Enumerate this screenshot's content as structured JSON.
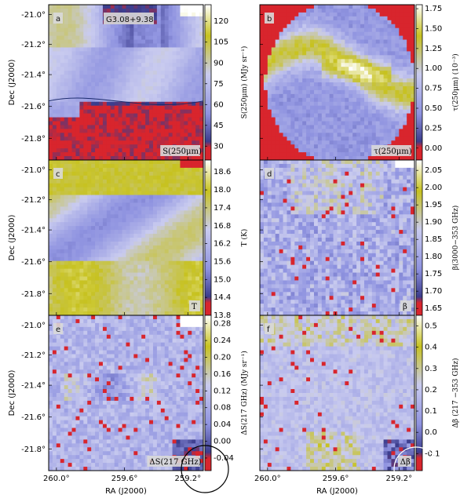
{
  "colors": {
    "low": "#d8252d",
    "mid_dark": "#3b3c8c",
    "mid": "#8f93e0",
    "light": "#c9cbef",
    "high": "#c7c21f",
    "top": "#ffffff"
  },
  "icons": [
    "colorbar",
    "heatmap-panel"
  ],
  "chart_data": [
    {
      "type": "heatmap",
      "panel": "a",
      "title": "G3.08+9.38",
      "corner_label": "S(250μm)",
      "colorbar_label": "S(250μm) (MJy sr⁻¹)",
      "colorbar_ticks": [
        "30",
        "45",
        "60",
        "75",
        "90",
        "105",
        "120"
      ],
      "colorbar_range": [
        20,
        132
      ],
      "ylabel": "Dec (J2000)",
      "yticks": [
        "-21.0°",
        "-21.2°",
        "-21.4°",
        "-21.6°",
        "-21.8°"
      ],
      "xticks": [],
      "xlabel": ""
    },
    {
      "type": "heatmap",
      "panel": "b",
      "corner_label": "τ(250μm)",
      "colorbar_label": "τ(250μm) (10⁻³)",
      "colorbar_ticks": [
        "0.00",
        "0.25",
        "0.50",
        "0.75",
        "1.00",
        "1.25",
        "1.50",
        "1.75"
      ],
      "colorbar_range": [
        -0.15,
        1.8
      ],
      "ylabel": "",
      "yticks": [],
      "xticks": [],
      "xlabel": ""
    },
    {
      "type": "heatmap",
      "panel": "c",
      "corner_label": "T",
      "colorbar_label": "T (K)",
      "colorbar_ticks": [
        "13.8",
        "14.4",
        "15.0",
        "15.6",
        "16.2",
        "16.8",
        "17.4",
        "18.0",
        "18.6"
      ],
      "colorbar_range": [
        13.8,
        19.0
      ],
      "ylabel": "Dec (J2000)",
      "yticks": [
        "-21.0°",
        "-21.2°",
        "-21.4°",
        "-21.6°",
        "-21.8°"
      ],
      "xticks": [],
      "xlabel": ""
    },
    {
      "type": "heatmap",
      "panel": "d",
      "corner_label": "β",
      "colorbar_label": "β(3000−353 GHz)",
      "colorbar_ticks": [
        "1.65",
        "1.70",
        "1.75",
        "1.80",
        "1.85",
        "1.90",
        "1.95",
        "2.00",
        "2.05"
      ],
      "colorbar_range": [
        1.63,
        2.08
      ],
      "ylabel": "",
      "yticks": [],
      "xticks": [],
      "xlabel": ""
    },
    {
      "type": "heatmap",
      "panel": "e",
      "corner_label": "ΔS(217 GHz)",
      "colorbar_label": "ΔS(217 GHz) (MJy sr⁻¹)",
      "colorbar_ticks": [
        "-0.04",
        "0.00",
        "0.04",
        "0.08",
        "0.12",
        "0.16",
        "0.20",
        "0.24",
        "0.28"
      ],
      "colorbar_range": [
        -0.07,
        0.3
      ],
      "ylabel": "Dec (J2000)",
      "yticks": [
        "-21.0°",
        "-21.2°",
        "-21.4°",
        "-21.6°",
        "-21.8°"
      ],
      "xticks": [
        "260.0°",
        "259.6°",
        "259.2°"
      ],
      "xlabel": "RA (J2000)"
    },
    {
      "type": "heatmap",
      "panel": "f",
      "corner_label": "Δβ",
      "colorbar_label": "Δβ (217 −353 GHz)",
      "colorbar_ticks": [
        "-0.1",
        "0.0",
        "0.1",
        "0.2",
        "0.3",
        "0.4",
        "0.5"
      ],
      "colorbar_range": [
        -0.18,
        0.55
      ],
      "ylabel": "",
      "yticks": [],
      "xticks": [
        "260.0°",
        "259.6°",
        "259.2°"
      ],
      "xlabel": "RA (J2000)"
    }
  ]
}
